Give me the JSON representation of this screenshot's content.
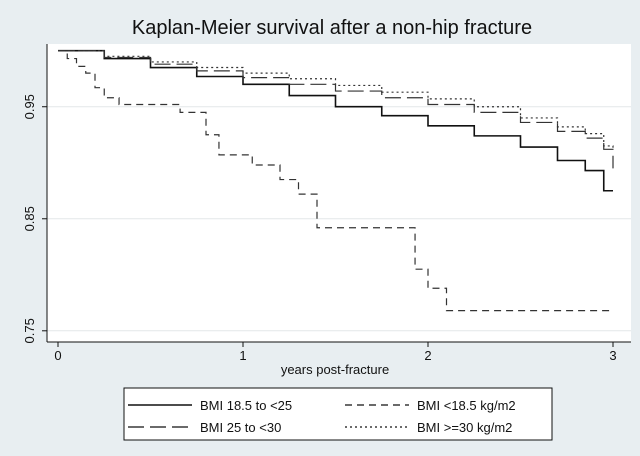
{
  "chart_data": {
    "type": "line",
    "title": "Kaplan-Meier survival after a non-hip fracture",
    "xlabel": "years post-fracture",
    "ylabel": "",
    "xlim": [
      0,
      3
    ],
    "ylim": [
      0.74,
      1.006
    ],
    "xticks": [
      0,
      1,
      2,
      3
    ],
    "xtick_labels": [
      "0",
      "1",
      "2",
      "3"
    ],
    "yticks": [
      0.75,
      0.85,
      0.95
    ],
    "ytick_labels": [
      "0.75",
      "0.85",
      "0.95"
    ],
    "grid": "horizontal",
    "legend_position": "bottom",
    "step": true,
    "series": [
      {
        "name": "BMI 18.5 to <25",
        "dash": "solid",
        "x": [
          0,
          0.25,
          0.5,
          0.75,
          1.0,
          1.25,
          1.5,
          1.75,
          2.0,
          2.25,
          2.5,
          2.7,
          2.85,
          2.95,
          3.0
        ],
        "y": [
          1.0,
          0.993,
          0.985,
          0.977,
          0.97,
          0.96,
          0.95,
          0.942,
          0.933,
          0.924,
          0.914,
          0.902,
          0.893,
          0.875,
          0.875
        ]
      },
      {
        "name": "BMI <18.5 kg/m2",
        "dash": "dash",
        "x": [
          0,
          0.05,
          0.1,
          0.15,
          0.2,
          0.25,
          0.33,
          0.66,
          0.8,
          0.87,
          1.05,
          1.2,
          1.3,
          1.4,
          1.9,
          1.93,
          2.0,
          2.1,
          3.0
        ],
        "y": [
          1.0,
          0.993,
          0.986,
          0.98,
          0.967,
          0.958,
          0.952,
          0.945,
          0.925,
          0.907,
          0.898,
          0.885,
          0.872,
          0.842,
          0.842,
          0.805,
          0.788,
          0.768,
          0.768
        ]
      },
      {
        "name": "BMI 25 to <30",
        "dash": "longdash",
        "x": [
          0,
          0.25,
          0.5,
          0.75,
          1.0,
          1.25,
          1.5,
          1.75,
          2.0,
          2.25,
          2.5,
          2.7,
          2.85,
          2.95,
          3.0
        ],
        "y": [
          1.0,
          0.994,
          0.988,
          0.982,
          0.976,
          0.97,
          0.964,
          0.958,
          0.952,
          0.945,
          0.936,
          0.928,
          0.922,
          0.912,
          0.895
        ]
      },
      {
        "name": "BMI >=30 kg/m2",
        "dash": "dot",
        "x": [
          0,
          0.25,
          0.5,
          0.75,
          1.0,
          1.25,
          1.5,
          1.75,
          2.0,
          2.25,
          2.5,
          2.7,
          2.85,
          2.95,
          3.0
        ],
        "y": [
          1.0,
          0.995,
          0.99,
          0.985,
          0.98,
          0.975,
          0.969,
          0.963,
          0.957,
          0.95,
          0.94,
          0.932,
          0.926,
          0.915,
          0.912
        ]
      }
    ]
  }
}
